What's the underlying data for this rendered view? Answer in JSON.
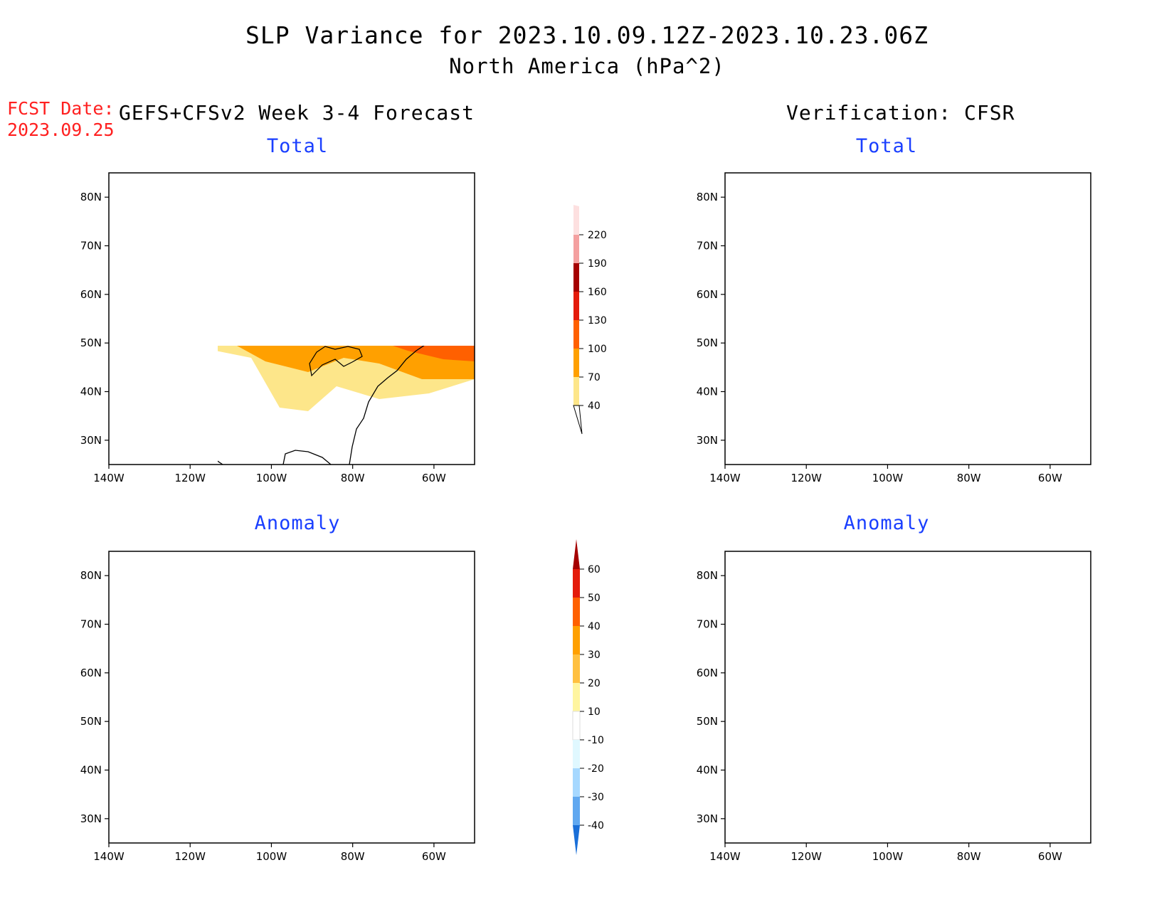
{
  "header": {
    "title": "SLP Variance for 2023.10.09.12Z-2023.10.23.06Z",
    "subtitle": "North America (hPa^2)",
    "fcst_label": "FCST Date:",
    "fcst_date": "2023.09.25",
    "left_column": "GEFS+CFSv2 Week 3-4 Forecast",
    "right_column": "Verification: CFSR"
  },
  "panels": [
    {
      "id": "fcst-total",
      "title": "Total"
    },
    {
      "id": "verif-total",
      "title": "Total"
    },
    {
      "id": "fcst-anomaly",
      "title": "Anomaly"
    },
    {
      "id": "verif-anomaly",
      "title": "Anomaly"
    }
  ],
  "axes": {
    "lat_labels": [
      "80N",
      "70N",
      "60N",
      "50N",
      "40N",
      "30N"
    ],
    "lat_values": [
      80,
      70,
      60,
      50,
      40,
      30
    ],
    "lon_labels": [
      "140W",
      "120W",
      "100W",
      "80W",
      "60W"
    ],
    "lon_values": [
      -140,
      -120,
      -100,
      -80,
      -60
    ],
    "lon_range": [
      -140,
      -50
    ],
    "lat_range": [
      25,
      85
    ]
  },
  "colorbars": {
    "total": {
      "levels": [
        "40",
        "70",
        "100",
        "130",
        "160",
        "190",
        "220"
      ],
      "colors": [
        "#fde68a",
        "#ffa000",
        "#ff6000",
        "#e41b0b",
        "#a50000",
        "#f4a0a0",
        "#fde0e0"
      ]
    },
    "anomaly": {
      "levels": [
        "60",
        "50",
        "40",
        "30",
        "20",
        "10",
        "-10",
        "-20",
        "-30",
        "-40"
      ],
      "colors": [
        "#a50000",
        "#e41b0b",
        "#ff6000",
        "#ffa000",
        "#ffc040",
        "#fff5a0",
        "#ffffff",
        "#e0f8ff",
        "#a6d8ff",
        "#60a8f0",
        "#1a6fd8"
      ]
    }
  }
}
